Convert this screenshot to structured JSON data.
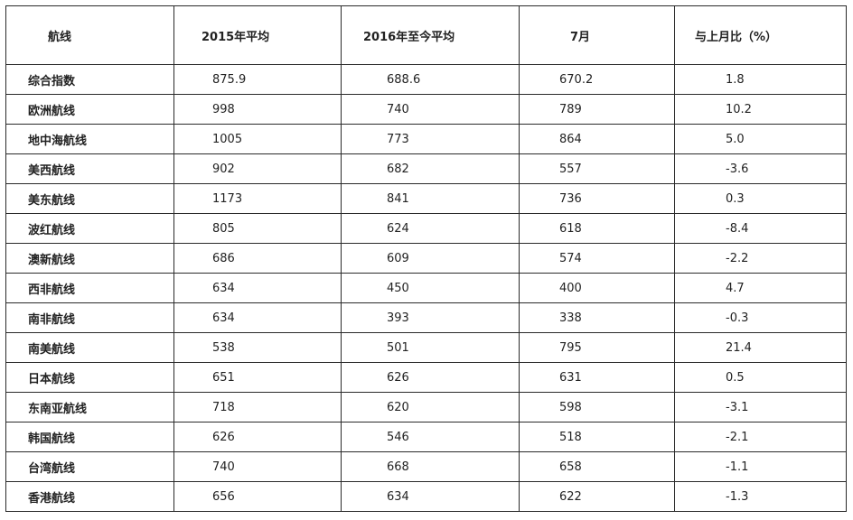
{
  "table": {
    "headers": [
      "航线",
      "2015年平均",
      "2016年至今平均",
      "7月",
      "与上月比（%）"
    ],
    "rows": [
      {
        "route": "综合指数",
        "avg2015": "875.9",
        "avg2016": "688.6",
        "july": "670.2",
        "change": "1.8"
      },
      {
        "route": "欧洲航线",
        "avg2015": "998",
        "avg2016": "740",
        "july": "789",
        "change": "10.2"
      },
      {
        "route": "地中海航线",
        "avg2015": "1005",
        "avg2016": "773",
        "july": "864",
        "change": "5.0"
      },
      {
        "route": "美西航线",
        "avg2015": "902",
        "avg2016": "682",
        "july": "557",
        "change": "-3.6"
      },
      {
        "route": "美东航线",
        "avg2015": "1173",
        "avg2016": "841",
        "july": "736",
        "change": "0.3"
      },
      {
        "route": "波红航线",
        "avg2015": "805",
        "avg2016": "624",
        "july": "618",
        "change": "-8.4"
      },
      {
        "route": "澳新航线",
        "avg2015": "686",
        "avg2016": "609",
        "july": "574",
        "change": "-2.2"
      },
      {
        "route": "西非航线",
        "avg2015": "634",
        "avg2016": "450",
        "july": "400",
        "change": "4.7"
      },
      {
        "route": "南非航线",
        "avg2015": "634",
        "avg2016": "393",
        "july": "338",
        "change": "-0.3"
      },
      {
        "route": "南美航线",
        "avg2015": "538",
        "avg2016": "501",
        "july": "795",
        "change": "21.4"
      },
      {
        "route": "日本航线",
        "avg2015": "651",
        "avg2016": "626",
        "july": "631",
        "change": "0.5"
      },
      {
        "route": "东南亚航线",
        "avg2015": "718",
        "avg2016": "620",
        "july": "598",
        "change": "-3.1"
      },
      {
        "route": "韩国航线",
        "avg2015": "626",
        "avg2016": "546",
        "july": "518",
        "change": "-2.1"
      },
      {
        "route": "台湾航线",
        "avg2015": "740",
        "avg2016": "668",
        "july": "658",
        "change": "-1.1"
      },
      {
        "route": "香港航线",
        "avg2015": "656",
        "avg2016": "634",
        "july": "622",
        "change": "-1.3"
      }
    ]
  }
}
